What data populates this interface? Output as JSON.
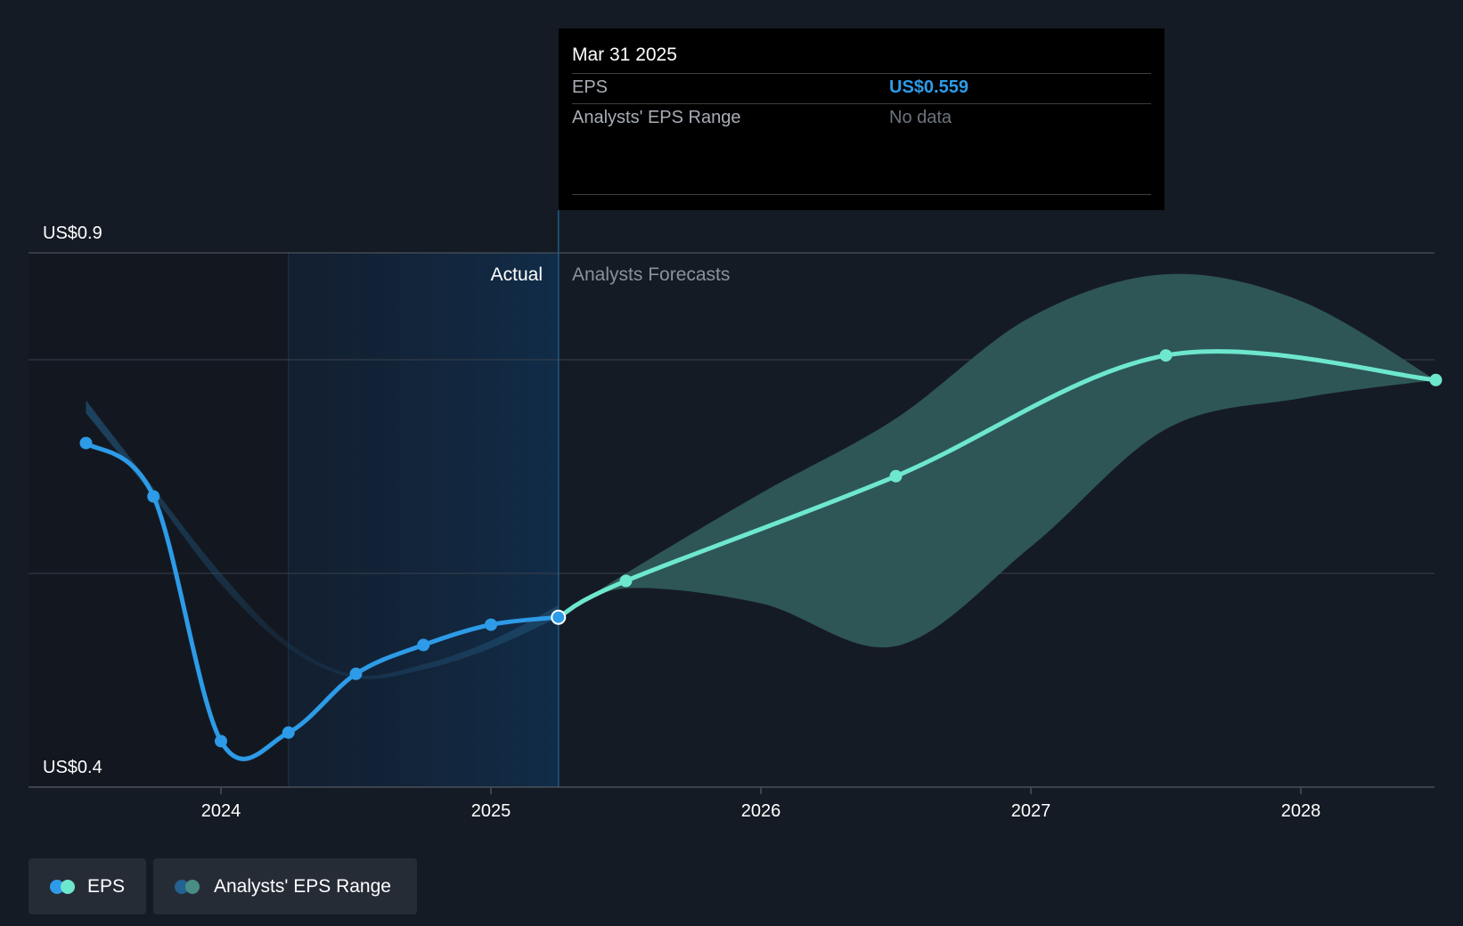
{
  "tooltip": {
    "date": "Mar 31 2025",
    "rows": [
      {
        "label": "EPS",
        "value": "US$0.559",
        "value_color": "#2d9be7"
      },
      {
        "label": "Analysts' EPS Range",
        "value": "No data",
        "value_color": "#6d737b"
      }
    ]
  },
  "regions": {
    "actual_label": "Actual",
    "forecast_label": "Analysts Forecasts"
  },
  "legend": {
    "items": [
      {
        "label": "EPS",
        "colors": [
          "#2d9be7",
          "#6ee7cf"
        ]
      },
      {
        "label": "Analysts' EPS Range",
        "colors": [
          "#246290",
          "#4a8d85"
        ]
      }
    ]
  },
  "colors": {
    "background": "#151b24",
    "actual_line": "#2d9be7",
    "forecast_line": "#6ee7cf",
    "forecast_band": "#2e5656",
    "actual_band": "#1f4f73",
    "highlight_region": "#112a43",
    "grid": "#3a414b"
  },
  "chart_data": {
    "type": "line",
    "y_tick_labels": [
      "US$0.9",
      "US$0.4"
    ],
    "ylim": [
      0.4,
      0.9
    ],
    "x_tick_labels": [
      "2024",
      "2025",
      "2026",
      "2027",
      "2028"
    ],
    "x_ticks": [
      2024.0,
      2025.0,
      2026.0,
      2027.0,
      2028.0
    ],
    "xlim": [
      2023.28,
      2028.5
    ],
    "grid_y": [
      0.9,
      0.8,
      0.6
    ],
    "actual_period_start": 2024.25,
    "actual_period_end": 2025.25,
    "series": [
      {
        "name": "EPS",
        "kind": "actual",
        "points": [
          {
            "x": 2023.5,
            "y": 0.722
          },
          {
            "x": 2023.75,
            "y": 0.672
          },
          {
            "x": 2024.0,
            "y": 0.443
          },
          {
            "x": 2024.25,
            "y": 0.451
          },
          {
            "x": 2024.5,
            "y": 0.506
          },
          {
            "x": 2024.75,
            "y": 0.533
          },
          {
            "x": 2025.0,
            "y": 0.552
          },
          {
            "x": 2025.25,
            "y": 0.559
          }
        ]
      },
      {
        "name": "EPS",
        "kind": "forecast",
        "points": [
          {
            "x": 2025.25,
            "y": 0.559
          },
          {
            "x": 2025.5,
            "y": 0.593
          },
          {
            "x": 2026.5,
            "y": 0.691
          },
          {
            "x": 2027.5,
            "y": 0.804
          },
          {
            "x": 2028.5,
            "y": 0.781
          }
        ]
      }
    ],
    "ranges": [
      {
        "name": "Analysts' EPS Range",
        "kind": "actual",
        "upper": [
          {
            "x": 2023.5,
            "y": 0.762
          },
          {
            "x": 2023.75,
            "y": 0.68
          },
          {
            "x": 2024.0,
            "y": 0.6
          },
          {
            "x": 2024.25,
            "y": 0.535
          },
          {
            "x": 2024.5,
            "y": 0.505
          },
          {
            "x": 2024.75,
            "y": 0.515
          },
          {
            "x": 2025.0,
            "y": 0.537
          },
          {
            "x": 2025.25,
            "y": 0.57
          }
        ],
        "lower": [
          {
            "x": 2023.5,
            "y": 0.75
          },
          {
            "x": 2023.75,
            "y": 0.672
          },
          {
            "x": 2024.0,
            "y": 0.59
          },
          {
            "x": 2024.25,
            "y": 0.53
          },
          {
            "x": 2024.5,
            "y": 0.502
          },
          {
            "x": 2024.75,
            "y": 0.51
          },
          {
            "x": 2025.0,
            "y": 0.53
          },
          {
            "x": 2025.25,
            "y": 0.559
          }
        ]
      },
      {
        "name": "Analysts' EPS Range",
        "kind": "forecast",
        "upper": [
          {
            "x": 2025.25,
            "y": 0.559
          },
          {
            "x": 2025.5,
            "y": 0.6
          },
          {
            "x": 2026.0,
            "y": 0.675
          },
          {
            "x": 2026.5,
            "y": 0.745
          },
          {
            "x": 2027.0,
            "y": 0.84
          },
          {
            "x": 2027.5,
            "y": 0.88
          },
          {
            "x": 2028.0,
            "y": 0.855
          },
          {
            "x": 2028.5,
            "y": 0.781
          }
        ],
        "lower": [
          {
            "x": 2025.25,
            "y": 0.559
          },
          {
            "x": 2025.5,
            "y": 0.586
          },
          {
            "x": 2026.0,
            "y": 0.572
          },
          {
            "x": 2026.5,
            "y": 0.532
          },
          {
            "x": 2027.0,
            "y": 0.625
          },
          {
            "x": 2027.5,
            "y": 0.735
          },
          {
            "x": 2028.0,
            "y": 0.764
          },
          {
            "x": 2028.5,
            "y": 0.781
          }
        ]
      }
    ],
    "highlighted_point": {
      "x": 2025.25,
      "y": 0.559
    }
  }
}
